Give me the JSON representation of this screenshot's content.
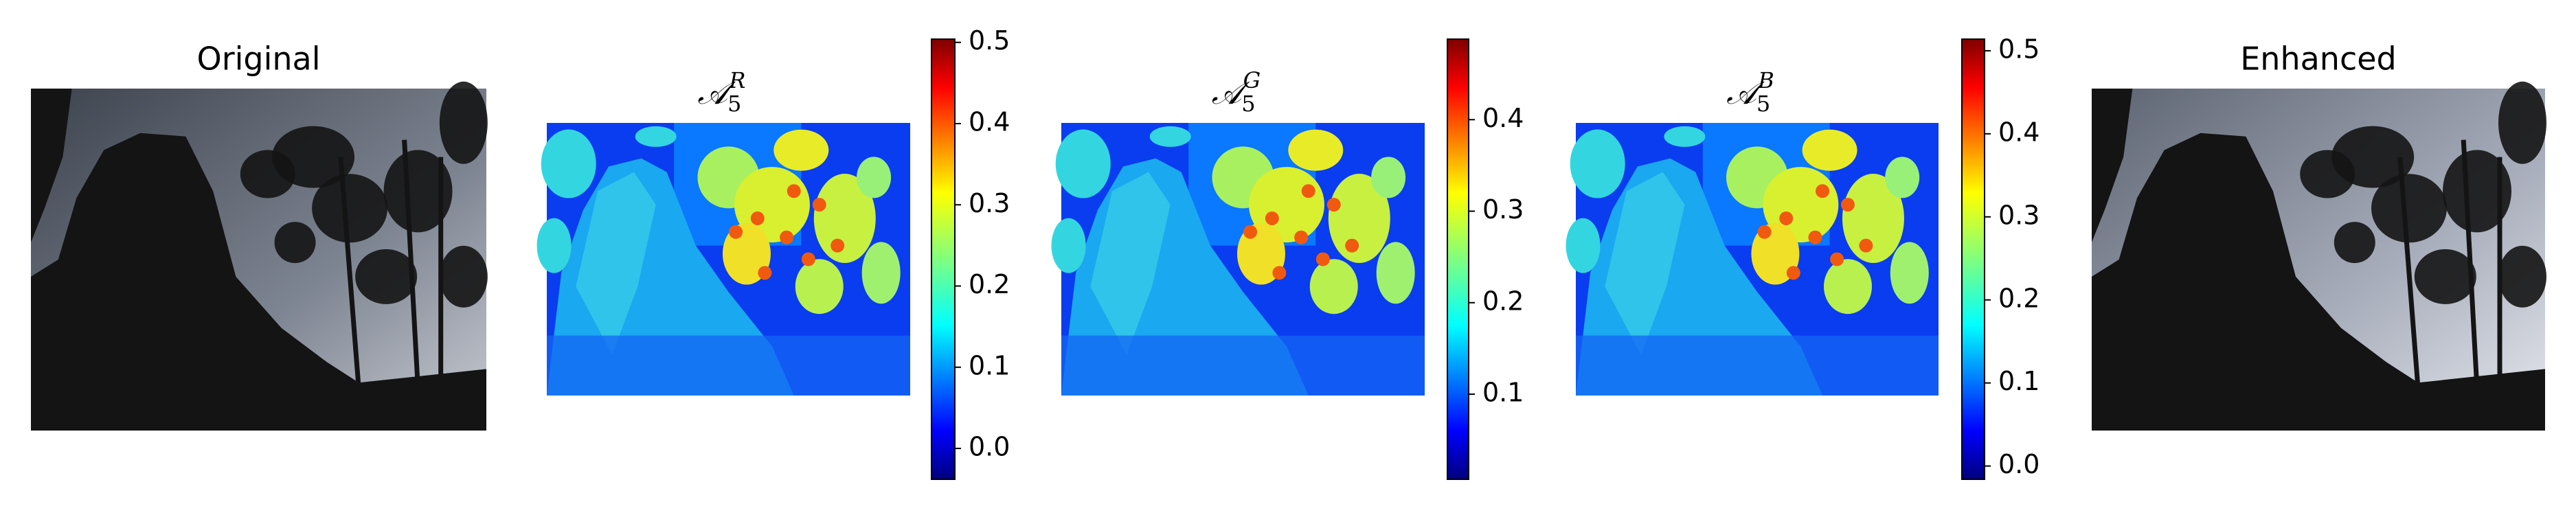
{
  "panels": [
    {
      "title": "Original"
    },
    {
      "title": {
        "base": "𝒜",
        "sub": "5",
        "sup": "R"
      },
      "colorbar": {
        "lim": [
          -0.038,
          0.504
        ],
        "ticks": [
          {
            "value": 0,
            "label": "0.0"
          },
          0.1,
          0.2,
          0.3,
          0.4,
          0.5
        ]
      }
    },
    {
      "title": {
        "base": "𝒜",
        "sub": "5",
        "sup": "G"
      },
      "colorbar": {
        "lim": [
          0.007,
          0.488
        ],
        "ticks": [
          0.1,
          0.2,
          0.3,
          0.4
        ]
      }
    },
    {
      "title": {
        "base": "𝒜",
        "sub": "5",
        "sup": "B"
      },
      "colorbar": {
        "lim": [
          -0.016,
          0.514
        ],
        "ticks": [
          {
            "value": 0,
            "label": "0.0"
          },
          0.1,
          0.2,
          0.3,
          0.4,
          0.5
        ]
      }
    },
    {
      "title": "Enhanced"
    }
  ]
}
